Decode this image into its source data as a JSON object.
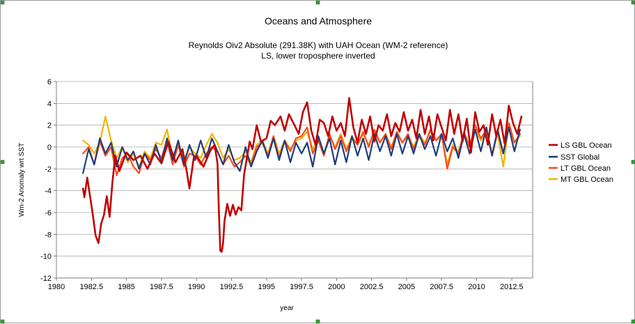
{
  "chart_data": {
    "type": "line",
    "title": "Oceans and Atmosphere",
    "subtitle": [
      "Reynolds Oiv2 Absolute (291.38K) with UAH Ocean (WM-2 reference)",
      "LS, lower troposphere inverted"
    ],
    "xlabel": "year",
    "ylabel": "Wm-2 Anomaly wrt SST",
    "xlim": [
      1980,
      2014
    ],
    "ylim": [
      -12,
      6
    ],
    "x_ticks": [
      "1980",
      "1982.5",
      "1985",
      "1987.5",
      "1990",
      "1992.5",
      "1995",
      "1997.5",
      "2000",
      "2002.5",
      "2005",
      "2007.5",
      "2010",
      "2012.5"
    ],
    "y_ticks": [
      "6",
      "4",
      "2",
      "0",
      "-2",
      "-4",
      "-6",
      "-8",
      "-10",
      "-12"
    ],
    "grid": "horizontal",
    "legend_position": "right",
    "series": [
      {
        "name": "LS GBL Ocean",
        "color": "#c00000",
        "x": [
          1981.9,
          1982.0,
          1982.2,
          1982.4,
          1982.6,
          1982.8,
          1983.0,
          1983.2,
          1983.4,
          1983.6,
          1983.8,
          1984.0,
          1984.2,
          1984.5,
          1985.0,
          1985.5,
          1986.0,
          1986.5,
          1987.0,
          1987.5,
          1988.0,
          1988.5,
          1989.0,
          1989.3,
          1989.5,
          1989.8,
          1990.0,
          1990.5,
          1991.0,
          1991.3,
          1991.5,
          1991.6,
          1991.7,
          1991.8,
          1991.9,
          1992.0,
          1992.2,
          1992.4,
          1992.6,
          1992.8,
          1993.0,
          1993.2,
          1993.4,
          1993.6,
          1993.8,
          1994.0,
          1994.3,
          1994.6,
          1995.0,
          1995.3,
          1995.6,
          1996.0,
          1996.3,
          1996.6,
          1997.0,
          1997.3,
          1997.6,
          1997.9,
          1998.2,
          1998.5,
          1998.8,
          1999.1,
          1999.4,
          1999.7,
          2000.0,
          2000.3,
          2000.6,
          2000.9,
          2001.2,
          2001.5,
          2001.8,
          2002.1,
          2002.4,
          2002.7,
          2003.0,
          2003.3,
          2003.6,
          2003.9,
          2004.2,
          2004.5,
          2004.8,
          2005.1,
          2005.4,
          2005.7,
          2006.0,
          2006.3,
          2006.6,
          2006.9,
          2007.2,
          2007.5,
          2007.8,
          2008.1,
          2008.4,
          2008.7,
          2009.0,
          2009.3,
          2009.6,
          2009.9,
          2010.2,
          2010.5,
          2010.8,
          2011.1,
          2011.4,
          2011.7,
          2012.0,
          2012.3,
          2012.6,
          2012.9,
          2013.2
        ],
        "values": [
          -3.8,
          -4.6,
          -2.8,
          -4.5,
          -6.2,
          -8.1,
          -8.8,
          -7.0,
          -6.2,
          -4.5,
          -6.4,
          -3.2,
          -0.8,
          -2.2,
          -0.5,
          -1.2,
          -0.8,
          -2.0,
          -0.6,
          -1.5,
          0.5,
          -1.4,
          -0.2,
          -2.2,
          -3.8,
          -1.0,
          -0.8,
          -1.8,
          -0.3,
          0.2,
          -1.5,
          -6.0,
          -9.5,
          -9.6,
          -8.8,
          -6.8,
          -5.2,
          -6.3,
          -5.3,
          -6.2,
          -5.5,
          -5.8,
          -2.5,
          -1.0,
          0.5,
          -0.2,
          2.0,
          0.5,
          0.8,
          2.4,
          2.0,
          2.8,
          1.5,
          3.0,
          2.0,
          1.2,
          3.2,
          4.1,
          1.5,
          0.2,
          2.5,
          2.2,
          1.0,
          2.8,
          1.5,
          2.2,
          1.0,
          4.5,
          1.8,
          0.4,
          2.5,
          1.2,
          2.8,
          0.5,
          2.0,
          1.5,
          3.0,
          1.0,
          2.2,
          1.4,
          3.2,
          1.5,
          2.5,
          0.8,
          3.4,
          1.2,
          2.8,
          0.6,
          3.0,
          1.8,
          0.6,
          3.4,
          1.2,
          3.0,
          0.5,
          2.6,
          -0.5,
          3.2,
          1.4,
          2.0,
          0.2,
          3.0,
          1.0,
          2.5,
          0.3,
          3.8,
          2.2,
          1.2,
          2.8
        ]
      },
      {
        "name": "SST Global",
        "color": "#1f3d7a",
        "x": [
          1981.9,
          1982.3,
          1982.7,
          1983.1,
          1983.5,
          1983.9,
          1984.3,
          1984.7,
          1985.1,
          1985.5,
          1985.9,
          1986.3,
          1986.7,
          1987.1,
          1987.5,
          1987.9,
          1988.3,
          1988.7,
          1989.1,
          1989.5,
          1989.9,
          1990.3,
          1990.7,
          1991.1,
          1991.5,
          1991.9,
          1992.3,
          1992.7,
          1993.1,
          1993.5,
          1993.9,
          1994.3,
          1994.7,
          1995.1,
          1995.5,
          1995.9,
          1996.3,
          1996.7,
          1997.1,
          1997.5,
          1997.9,
          1998.3,
          1998.7,
          1999.1,
          1999.5,
          1999.9,
          2000.3,
          2000.7,
          2001.1,
          2001.5,
          2001.9,
          2002.3,
          2002.7,
          2003.1,
          2003.5,
          2003.9,
          2004.3,
          2004.7,
          2005.1,
          2005.5,
          2005.9,
          2006.3,
          2006.7,
          2007.1,
          2007.5,
          2007.9,
          2008.3,
          2008.7,
          2009.1,
          2009.5,
          2009.9,
          2010.3,
          2010.7,
          2011.1,
          2011.5,
          2011.9,
          2012.3,
          2012.7,
          2013.1
        ],
        "values": [
          -2.4,
          -0.2,
          -1.6,
          0.8,
          -0.6,
          0.4,
          -1.8,
          0.0,
          -1.2,
          -0.4,
          -2.0,
          -0.6,
          -1.6,
          0.2,
          -1.4,
          0.8,
          -1.2,
          0.6,
          -1.6,
          0.2,
          -1.2,
          0.6,
          -1.0,
          0.8,
          -0.4,
          -1.6,
          0.2,
          -1.4,
          -2.2,
          0.0,
          -1.8,
          -0.4,
          0.6,
          -1.0,
          0.8,
          -1.2,
          0.6,
          -1.4,
          0.4,
          -0.6,
          0.4,
          -1.8,
          1.0,
          -0.6,
          0.8,
          -1.6,
          0.6,
          -1.4,
          1.0,
          -0.8,
          0.8,
          -1.2,
          1.2,
          -0.4,
          1.0,
          -0.8,
          1.2,
          -0.6,
          1.0,
          -0.6,
          1.2,
          -0.2,
          1.0,
          -0.8,
          1.2,
          -0.4,
          0.8,
          -1.0,
          1.2,
          -0.6,
          1.6,
          -0.4,
          1.8,
          -0.8,
          1.6,
          -0.6,
          1.8,
          -0.4,
          1.6
        ]
      },
      {
        "name": "LT GBL Ocean",
        "color": "#ff4a1c",
        "x": [
          1981.9,
          1982.3,
          1982.7,
          1983.1,
          1983.5,
          1983.9,
          1984.3,
          1984.7,
          1985.1,
          1985.5,
          1985.9,
          1986.3,
          1986.7,
          1987.1,
          1987.5,
          1987.9,
          1988.3,
          1988.7,
          1989.1,
          1989.5,
          1989.9,
          1990.3,
          1990.7,
          1991.1,
          1991.5,
          1991.9,
          1992.3,
          1992.7,
          1993.1,
          1993.5,
          1993.9,
          1994.3,
          1994.7,
          1995.1,
          1995.5,
          1995.9,
          1996.3,
          1996.7,
          1997.1,
          1997.5,
          1997.9,
          1998.3,
          1998.7,
          1999.1,
          1999.5,
          1999.9,
          2000.3,
          2000.7,
          2001.1,
          2001.5,
          2001.9,
          2002.3,
          2002.7,
          2003.1,
          2003.5,
          2003.9,
          2004.3,
          2004.7,
          2005.1,
          2005.5,
          2005.9,
          2006.3,
          2006.7,
          2007.1,
          2007.5,
          2007.9,
          2008.3,
          2008.7,
          2009.1,
          2009.5,
          2009.9,
          2010.3,
          2010.7,
          2011.1,
          2011.5,
          2011.9,
          2012.3,
          2012.7,
          2013.1
        ],
        "values": [
          -0.6,
          0.0,
          -1.6,
          0.5,
          -0.8,
          0.0,
          -2.6,
          -1.0,
          -0.6,
          -1.8,
          -2.4,
          -0.6,
          -1.2,
          -0.2,
          -1.0,
          0.6,
          -1.6,
          0.2,
          -1.8,
          -0.6,
          -0.8,
          -1.6,
          -0.6,
          0.0,
          -0.4,
          -1.6,
          -0.8,
          -1.8,
          -1.4,
          -0.8,
          -1.6,
          0.0,
          0.4,
          -0.8,
          1.0,
          -1.0,
          0.6,
          -0.4,
          0.8,
          1.0,
          1.8,
          -0.6,
          0.6,
          -0.8,
          1.2,
          -0.2,
          1.0,
          -0.4,
          0.8,
          0.2,
          1.4,
          0.0,
          1.6,
          0.4,
          1.2,
          -0.2,
          1.4,
          0.4,
          1.2,
          -0.2,
          1.0,
          0.2,
          1.6,
          0.6,
          1.2,
          -2.0,
          0.0,
          -0.6,
          1.4,
          0.0,
          2.0,
          0.8,
          1.6,
          -0.8,
          1.4,
          -0.6,
          2.2,
          0.4,
          1.2
        ]
      },
      {
        "name": "MT GBL Ocean",
        "color": "#f0b400",
        "x": [
          1981.9,
          1982.3,
          1982.7,
          1983.1,
          1983.5,
          1983.9,
          1984.3,
          1984.7,
          1985.1,
          1985.5,
          1985.9,
          1986.3,
          1986.7,
          1987.1,
          1987.5,
          1987.9,
          1988.3,
          1988.7,
          1989.1,
          1989.5,
          1989.9,
          1990.3,
          1990.7,
          1991.1,
          1991.5,
          1991.9,
          1992.3,
          1992.7,
          1993.1,
          1993.5,
          1993.9,
          1994.3,
          1994.7,
          1995.1,
          1995.5,
          1995.9,
          1996.3,
          1996.7,
          1997.1,
          1997.5,
          1997.9,
          1998.3,
          1998.7,
          1999.1,
          1999.5,
          1999.9,
          2000.3,
          2000.7,
          2001.1,
          2001.5,
          2001.9,
          2002.3,
          2002.7,
          2003.1,
          2003.5,
          2003.9,
          2004.3,
          2004.7,
          2005.1,
          2005.5,
          2005.9,
          2006.3,
          2006.7,
          2007.1,
          2007.5,
          2007.9,
          2008.3,
          2008.7,
          2009.1,
          2009.5,
          2009.9,
          2010.3,
          2010.7,
          2011.1,
          2011.5,
          2011.9,
          2012.3,
          2012.7,
          2013.1
        ],
        "values": [
          0.6,
          0.2,
          -0.6,
          0.4,
          2.8,
          0.6,
          -1.0,
          0.0,
          -1.4,
          -0.6,
          -1.8,
          -0.4,
          -1.0,
          0.4,
          0.2,
          1.6,
          -1.0,
          0.4,
          -1.2,
          0.0,
          -0.6,
          -1.0,
          0.2,
          1.2,
          0.4,
          -1.0,
          -0.2,
          -1.2,
          -1.0,
          -0.4,
          -1.4,
          0.2,
          0.6,
          -0.6,
          1.0,
          -0.6,
          0.6,
          -0.2,
          0.6,
          0.8,
          1.4,
          -0.2,
          0.8,
          -0.6,
          1.0,
          0.0,
          1.2,
          -0.2,
          1.0,
          0.2,
          1.2,
          0.2,
          1.4,
          0.4,
          1.2,
          0.0,
          1.2,
          0.4,
          1.0,
          0.0,
          1.2,
          0.4,
          1.4,
          0.6,
          1.0,
          -1.6,
          0.2,
          -0.4,
          1.2,
          0.2,
          1.6,
          0.6,
          1.4,
          -0.6,
          1.2,
          -1.8,
          2.0,
          0.4,
          1.0
        ]
      }
    ]
  }
}
